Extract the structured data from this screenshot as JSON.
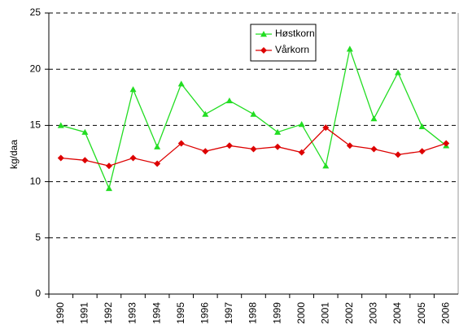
{
  "chart_data": {
    "type": "line",
    "y_label": "kg/daa",
    "categories": [
      "1990",
      "1991",
      "1992",
      "1993",
      "1994",
      "1995",
      "1996",
      "1997",
      "1998",
      "1999",
      "2000",
      "2001",
      "2002",
      "2003",
      "2004",
      "2005",
      "2006"
    ],
    "series": [
      {
        "name": "Høstkorn",
        "color": "#22dd22",
        "marker": "triangle",
        "values": [
          15.0,
          14.4,
          9.4,
          18.2,
          13.1,
          18.7,
          16.0,
          17.2,
          16.0,
          14.4,
          15.1,
          11.4,
          21.8,
          15.6,
          19.7,
          14.9,
          13.2
        ]
      },
      {
        "name": "Vårkorn",
        "color": "#dd0000",
        "marker": "diamond",
        "values": [
          12.1,
          11.9,
          11.4,
          12.1,
          11.6,
          13.4,
          12.7,
          13.2,
          12.9,
          13.1,
          12.6,
          14.8,
          13.2,
          12.9,
          12.4,
          12.7,
          13.4
        ]
      }
    ],
    "ylim": [
      0,
      25
    ],
    "yticks": [
      0,
      5,
      10,
      15,
      20,
      25
    ],
    "grid": true,
    "legend": "upper center"
  }
}
